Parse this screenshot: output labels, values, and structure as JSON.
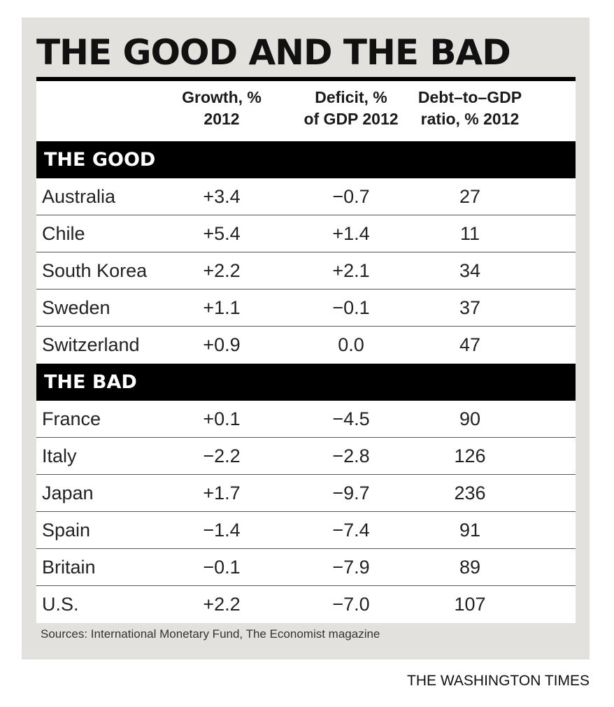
{
  "chart_data": {
    "type": "table",
    "title": "THE GOOD AND THE BAD",
    "columns": [
      "",
      "Growth, %\n2012",
      "Deficit, %\nof GDP 2012",
      "Debt–to–GDP\nratio, % 2012"
    ],
    "sections": [
      {
        "label": "THE GOOD",
        "rows": [
          [
            "Australia",
            "+3.4",
            "−0.7",
            "27"
          ],
          [
            "Chile",
            "+5.4",
            "+1.4",
            "11"
          ],
          [
            "South Korea",
            "+2.2",
            "+2.1",
            "34"
          ],
          [
            "Sweden",
            "+1.1",
            "−0.1",
            "37"
          ],
          [
            "Switzerland",
            "+0.9",
            "0.0",
            "47"
          ]
        ]
      },
      {
        "label": "THE BAD",
        "rows": [
          [
            "France",
            "+0.1",
            "−4.5",
            "90"
          ],
          [
            "Italy",
            "−2.2",
            "−2.8",
            "126"
          ],
          [
            "Japan",
            "+1.7",
            "−9.7",
            "236"
          ],
          [
            "Spain",
            "−1.4",
            "−7.4",
            "91"
          ],
          [
            "Britain",
            "−0.1",
            "−7.9",
            "89"
          ],
          [
            "U.S.",
            "+2.2",
            "−7.0",
            "107"
          ]
        ]
      }
    ]
  },
  "source": "Sources: International Monetary Fund, The Economist magazine",
  "credit": "THE WASHINGTON TIMES",
  "colors": {
    "panel": "#e3e1de",
    "section_bar": "#000000",
    "row_bg": "#ffffff"
  }
}
